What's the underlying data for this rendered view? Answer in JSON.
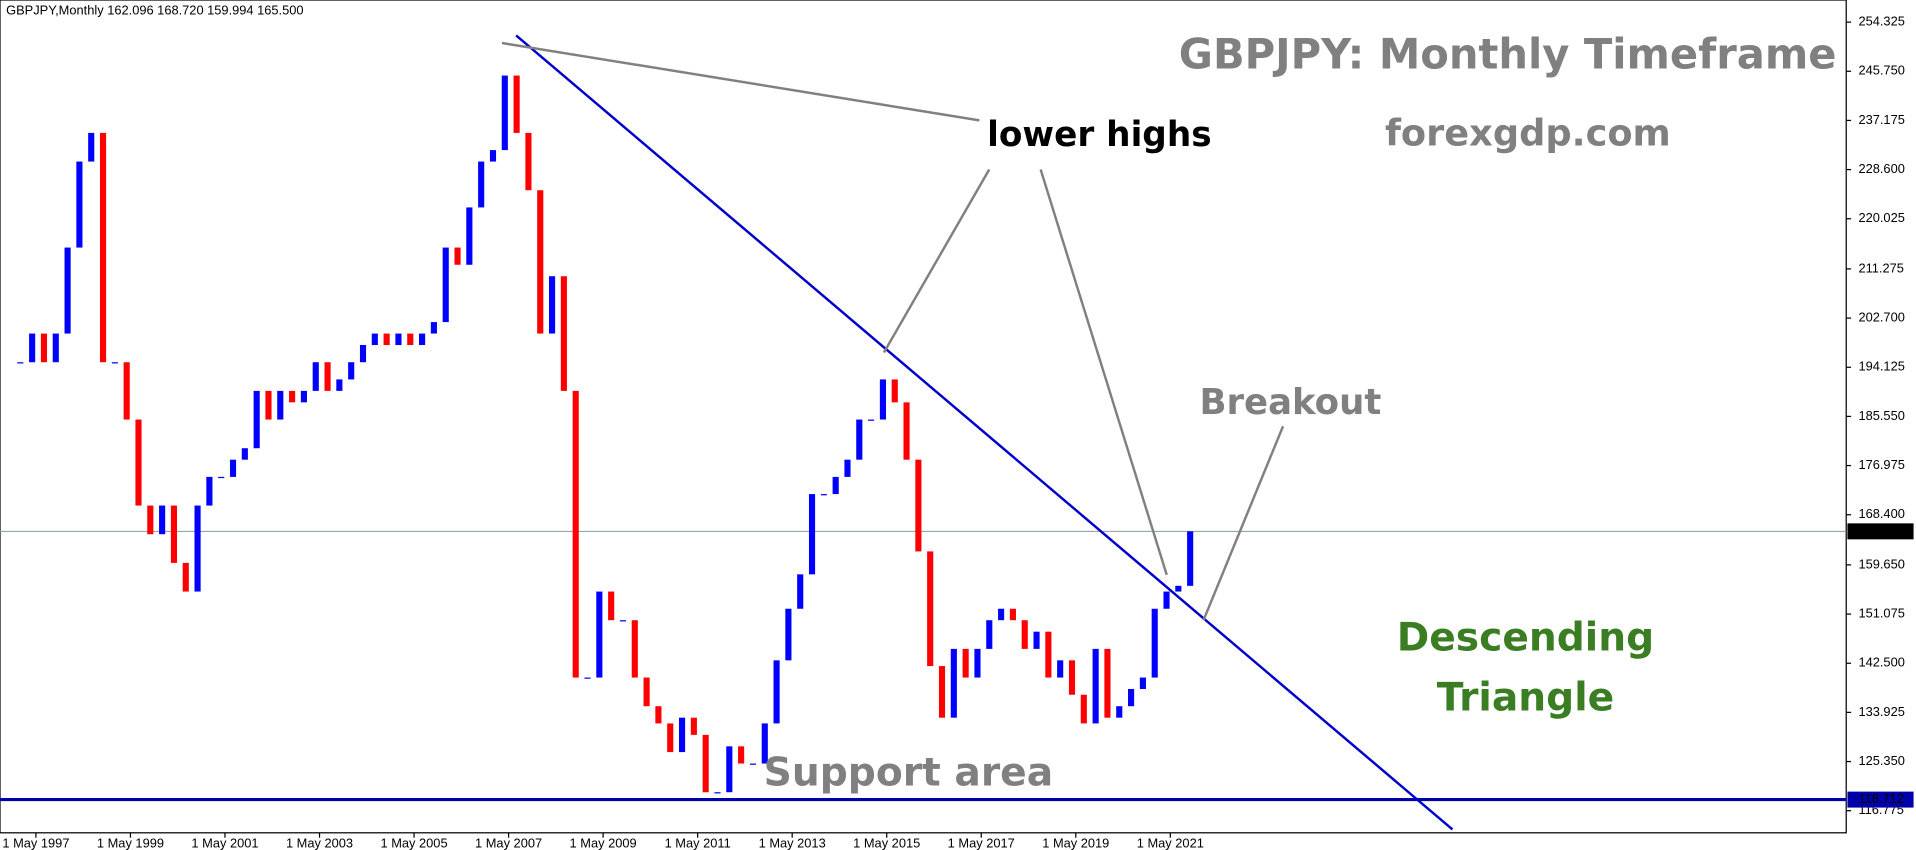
{
  "chart_data": {
    "type": "candlestick",
    "header": "GBPJPY,Monthly  162.096 168.720 159.994 165.500",
    "title": "GBPJPY: Monthly Timeframe",
    "subtitle": "forexgdp.com",
    "annotations": {
      "lower_highs": "lower highs",
      "breakout": "Breakout",
      "support": "Support area",
      "pattern": [
        "Descending",
        "Triangle"
      ]
    },
    "up_color": "#0000ff",
    "down_color": "#ff0000",
    "x": [
      1997,
      1997.25,
      1997.5,
      1997.75,
      1998,
      1998.25,
      1998.5,
      1998.75,
      1999,
      1999.25,
      1999.5,
      1999.75,
      2000,
      2000.25,
      2000.5,
      2000.75,
      2001,
      2001.25,
      2001.5,
      2001.75,
      2002,
      2002.25,
      2002.5,
      2002.75,
      2003,
      2003.25,
      2003.5,
      2003.75,
      2004,
      2004.25,
      2004.5,
      2004.75,
      2005,
      2005.25,
      2005.5,
      2005.75,
      2006,
      2006.25,
      2006.5,
      2006.75,
      2007,
      2007.25,
      2007.5,
      2007.75,
      2008,
      2008.25,
      2008.5,
      2008.75,
      2009,
      2009.25,
      2009.5,
      2009.75,
      2010,
      2010.25,
      2010.5,
      2010.75,
      2011,
      2011.25,
      2011.5,
      2011.75,
      2012,
      2012.25,
      2012.5,
      2012.75,
      2013,
      2013.25,
      2013.5,
      2013.75,
      2014,
      2014.25,
      2014.5,
      2014.75,
      2015,
      2015.25,
      2015.5,
      2015.75,
      2016,
      2016.25,
      2016.5,
      2016.75,
      2017,
      2017.25,
      2017.5,
      2017.75,
      2018,
      2018.25,
      2018.5,
      2018.75,
      2019,
      2019.25,
      2019.5,
      2019.75,
      2020,
      2020.25,
      2020.5,
      2020.75,
      2021,
      2021.25,
      2021.5,
      2021.75
    ],
    "values": [
      195,
      200,
      195,
      200,
      215,
      230,
      235,
      195,
      195,
      185,
      170,
      165,
      170,
      160,
      155,
      170,
      175,
      175,
      178,
      180,
      190,
      185,
      190,
      188,
      190,
      195,
      190,
      192,
      195,
      198,
      200,
      198,
      200,
      198,
      200,
      202,
      215,
      212,
      222,
      230,
      232,
      245,
      235,
      225,
      200,
      210,
      190,
      140,
      140,
      155,
      150,
      150,
      140,
      135,
      132,
      127,
      133,
      130,
      120,
      120,
      128,
      125,
      125,
      132,
      143,
      152,
      158,
      172,
      172,
      175,
      178,
      185,
      185,
      192,
      188,
      178,
      162,
      142,
      133,
      145,
      140,
      145,
      150,
      152,
      150,
      145,
      148,
      140,
      143,
      137,
      132,
      145,
      133,
      135,
      138,
      140,
      152,
      155,
      156,
      165.5
    ],
    "xlim": [
      1996.57,
      2035.63
    ],
    "ylim": [
      112.92,
      258.18
    ],
    "xticks": [
      {
        "value": 1997.33,
        "label": "1 May 1997"
      },
      {
        "value": 1999.33,
        "label": "1 May 1999"
      },
      {
        "value": 2001.33,
        "label": "1 May 2001"
      },
      {
        "value": 2003.33,
        "label": "1 May 2003"
      },
      {
        "value": 2005.33,
        "label": "1 May 2005"
      },
      {
        "value": 2007.33,
        "label": "1 May 2007"
      },
      {
        "value": 2009.33,
        "label": "1 May 2009"
      },
      {
        "value": 2011.33,
        "label": "1 May 2011"
      },
      {
        "value": 2013.33,
        "label": "1 May 2013"
      },
      {
        "value": 2015.33,
        "label": "1 May 2015"
      },
      {
        "value": 2017.33,
        "label": "1 May 2017"
      },
      {
        "value": 2019.33,
        "label": "1 May 2019"
      },
      {
        "value": 2021.33,
        "label": "1 May 2021"
      }
    ],
    "yticks": [
      116.775,
      {
        "value": 125.35,
        "label": "125.350"
      },
      133.925,
      {
        "value": 142.5,
        "label": "142.500"
      },
      151.075,
      {
        "value": 159.65,
        "label": "159.650"
      },
      {
        "value": 168.4,
        "label": "168.400"
      },
      176.975,
      {
        "value": 185.55,
        "label": "185.550"
      },
      194.125,
      {
        "value": 202.7,
        "label": "202.700"
      },
      211.275,
      220.025,
      {
        "value": 228.6,
        "label": "228.600"
      },
      237.175,
      {
        "value": 245.75,
        "label": "245.750"
      },
      254.325
    ],
    "price_lines": [
      {
        "value": 165.5,
        "label": "165.500",
        "color": "#8899aa"
      },
      {
        "value": 118.712,
        "label": "118.712",
        "color": "#0000aa"
      }
    ],
    "trendline": {
      "x": [
        2007.49,
        2027.3
      ],
      "y": [
        252,
        113.5
      ],
      "color": "#0000cc"
    }
  }
}
